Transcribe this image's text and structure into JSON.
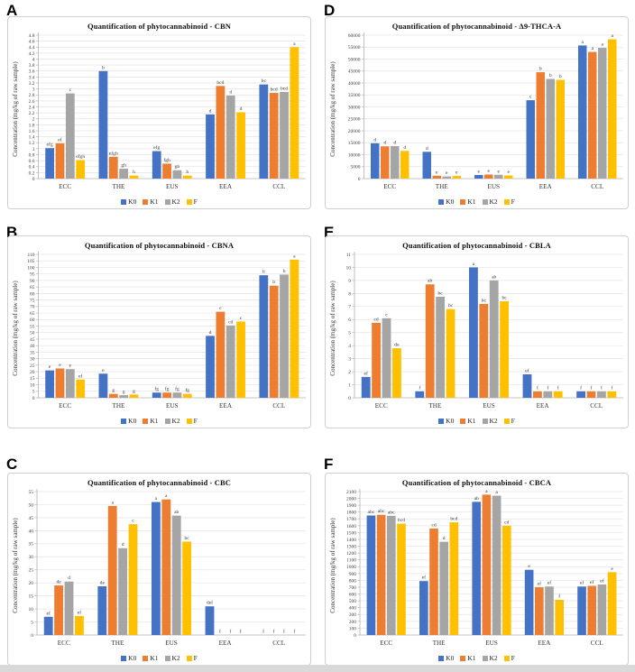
{
  "figure": {
    "background": "#ffffff",
    "bottom_strip_color": "#d9d9d9",
    "panel_order_on_page": [
      "A",
      "D",
      "B",
      "E",
      "C",
      "F"
    ]
  },
  "chart_data": [
    {
      "panel": "A",
      "type": "bar",
      "title": "Quantification of phytocannabinoid - CBN",
      "ylabel": "Concentration (mg/kg of raw sample)",
      "categories": [
        "ECC",
        "THE",
        "EUS",
        "EEA",
        "CCL"
      ],
      "ylim": [
        0,
        4.8
      ],
      "ystep": 0.2,
      "grid": true,
      "legend_position": "bottom",
      "series": [
        {
          "name": "K0",
          "color": "#4472C4",
          "values": [
            1.02,
            3.6,
            0.92,
            2.15,
            3.15
          ],
          "labels": [
            "efg",
            "b",
            "efg",
            "d",
            "bc"
          ]
        },
        {
          "name": "K1",
          "color": "#ED7D31",
          "values": [
            1.18,
            0.73,
            0.5,
            3.1,
            2.87
          ],
          "labels": [
            "ef",
            "efgh",
            "fgh",
            "bcd",
            "bcd"
          ]
        },
        {
          "name": "K2",
          "color": "#A5A5A5",
          "values": [
            2.85,
            0.33,
            0.28,
            2.78,
            2.9
          ],
          "labels": [
            "c",
            "gh",
            "gh",
            "d",
            "bcd"
          ]
        },
        {
          "name": "F",
          "color": "#FFC000",
          "values": [
            0.62,
            0.1,
            0.1,
            2.22,
            4.4
          ],
          "labels": [
            "efgh",
            "h",
            "h",
            "d",
            "a"
          ]
        }
      ]
    },
    {
      "panel": "B",
      "type": "bar",
      "title": "Quantification of phytocannabinoid - CBNA",
      "ylabel": "Concentration (mg/kg of raw sample)",
      "categories": [
        "ECC",
        "THE",
        "EUS",
        "EEA",
        "CCL"
      ],
      "ylim": [
        0,
        110
      ],
      "ystep": 5,
      "grid": true,
      "legend_position": "bottom",
      "series": [
        {
          "name": "K0",
          "color": "#4472C4",
          "values": [
            21,
            18.5,
            4,
            47.5,
            94
          ],
          "labels": [
            "e",
            "e",
            "fg",
            "d",
            "b"
          ]
        },
        {
          "name": "K1",
          "color": "#ED7D31",
          "values": [
            22.5,
            3,
            4,
            66,
            86
          ],
          "labels": [
            "e",
            "g",
            "fg",
            "c",
            "b"
          ]
        },
        {
          "name": "K2",
          "color": "#A5A5A5",
          "values": [
            22,
            2,
            4,
            55.5,
            94.5
          ],
          "labels": [
            "e",
            "g",
            "fg",
            "cd",
            "b"
          ]
        },
        {
          "name": "F",
          "color": "#FFC000",
          "values": [
            14,
            2.5,
            3,
            58.5,
            106
          ],
          "labels": [
            "ef",
            "g",
            "fg",
            "c",
            "a"
          ]
        }
      ]
    },
    {
      "panel": "C",
      "type": "bar",
      "title": "Quantification of phytocannabinoid - CBC",
      "ylabel": "Concentration (mg/kg of raw sample)",
      "categories": [
        "ECC",
        "THE",
        "EUS",
        "EEA",
        "CCL"
      ],
      "ylim": [
        0,
        55
      ],
      "ystep": 5,
      "grid": true,
      "legend_position": "bottom",
      "series": [
        {
          "name": "K0",
          "color": "#4472C4",
          "values": [
            7,
            18.7,
            51,
            11,
            0
          ],
          "labels": [
            "ef",
            "de",
            "a",
            "def",
            "f"
          ]
        },
        {
          "name": "K1",
          "color": "#ED7D31",
          "values": [
            19,
            49.5,
            52,
            0,
            0
          ],
          "labels": [
            "de",
            "a",
            "a",
            "f",
            "f"
          ]
        },
        {
          "name": "K2",
          "color": "#A5A5A5",
          "values": [
            20.5,
            33.3,
            45.8,
            0,
            0
          ],
          "labels": [
            "d",
            "d",
            "ab",
            "f",
            "f"
          ]
        },
        {
          "name": "F",
          "color": "#FFC000",
          "values": [
            7.3,
            42.5,
            35.8,
            0,
            0
          ],
          "labels": [
            "ef",
            "c",
            "bc",
            "f",
            "f"
          ]
        }
      ]
    },
    {
      "panel": "D",
      "type": "bar",
      "title": "Quantification of phytocannabinoid - Δ9-THCA-A",
      "ylabel": "Concentration (mg/kg of raw sample)",
      "categories": [
        "ECC",
        "THE",
        "EUS",
        "EEA",
        "CCL"
      ],
      "ylim": [
        0,
        60000
      ],
      "ystep": 5000,
      "grid": true,
      "legend_position": "bottom",
      "series": [
        {
          "name": "K0",
          "color": "#4472C4",
          "values": [
            14800,
            11200,
            1500,
            32800,
            55700
          ],
          "labels": [
            "d",
            "d",
            "e",
            "c",
            "a"
          ]
        },
        {
          "name": "K1",
          "color": "#ED7D31",
          "values": [
            13500,
            1200,
            1700,
            44500,
            53000
          ],
          "labels": [
            "d",
            "e",
            "e",
            "b",
            "a"
          ]
        },
        {
          "name": "K2",
          "color": "#A5A5A5",
          "values": [
            13600,
            900,
            1600,
            41700,
            54700
          ],
          "labels": [
            "d",
            "e",
            "e",
            "b",
            "a"
          ]
        },
        {
          "name": "F",
          "color": "#FFC000",
          "values": [
            11600,
            1100,
            1300,
            41300,
            58300
          ],
          "labels": [
            "d",
            "e",
            "e",
            "b",
            "a"
          ]
        }
      ]
    },
    {
      "panel": "E",
      "type": "bar",
      "title": "Quantification of phytocannabinoid - CBLA",
      "ylabel": "Concentration (mg/kg of raw sample)",
      "categories": [
        "ECC",
        "THE",
        "EUS",
        "EEA",
        "CCL"
      ],
      "ylim": [
        0,
        11
      ],
      "ystep": 1,
      "grid": true,
      "legend_position": "bottom",
      "series": [
        {
          "name": "K0",
          "color": "#4472C4",
          "values": [
            1.6,
            0.5,
            10,
            1.8,
            0.5
          ],
          "labels": [
            "ef",
            "f",
            "a",
            "ef",
            "f"
          ]
        },
        {
          "name": "K1",
          "color": "#ED7D31",
          "values": [
            5.75,
            8.7,
            7.2,
            0.5,
            0.5
          ],
          "labels": [
            "cd",
            "ab",
            "bc",
            "f",
            "f"
          ]
        },
        {
          "name": "K2",
          "color": "#A5A5A5",
          "values": [
            6.1,
            7.75,
            9,
            0.5,
            0.5
          ],
          "labels": [
            "c",
            "bc",
            "ab",
            "f",
            "f"
          ]
        },
        {
          "name": "F",
          "color": "#FFC000",
          "values": [
            3.8,
            6.8,
            7.4,
            0.5,
            0.5
          ],
          "labels": [
            "de",
            "bc",
            "bc",
            "f",
            "f"
          ]
        }
      ]
    },
    {
      "panel": "F",
      "type": "bar",
      "title": "Quantification of phytocannabinoid - CBCA",
      "ylabel": "Concentration (mg/kg of raw sample)",
      "categories": [
        "ECC",
        "THE",
        "EUS",
        "EEA",
        "CCL"
      ],
      "ylim": [
        0,
        2100
      ],
      "ystep": 100,
      "grid": true,
      "legend_position": "bottom",
      "series": [
        {
          "name": "K0",
          "color": "#4472C4",
          "values": [
            1750,
            790,
            1950,
            955,
            710
          ],
          "labels": [
            "abc",
            "ef",
            "ab",
            "e",
            "ef"
          ]
        },
        {
          "name": "K1",
          "color": "#ED7D31",
          "values": [
            1760,
            1560,
            2055,
            700,
            720
          ],
          "labels": [
            "abc",
            "cd",
            "a",
            "ef",
            "ef"
          ]
        },
        {
          "name": "K2",
          "color": "#A5A5A5",
          "values": [
            1745,
            1365,
            2040,
            710,
            740
          ],
          "labels": [
            "abc",
            "d",
            "a",
            "ef",
            "ef"
          ]
        },
        {
          "name": "F",
          "color": "#FFC000",
          "values": [
            1630,
            1650,
            1600,
            515,
            920
          ],
          "labels": [
            "bcd",
            "bcd",
            "cd",
            "f",
            "e"
          ]
        }
      ]
    }
  ]
}
